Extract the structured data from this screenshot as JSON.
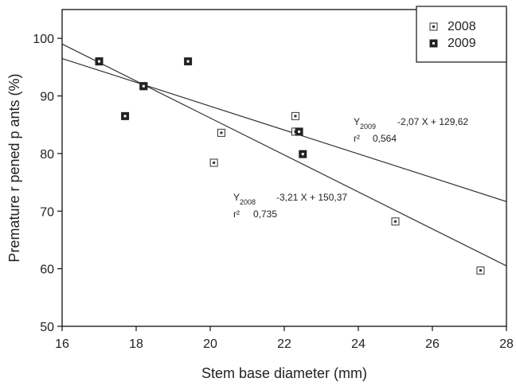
{
  "chart_data": {
    "type": "scatter",
    "xlabel": "Stem base diameter (mm)",
    "ylabel": "Premature r pened p ants (%)",
    "xlim": [
      16,
      28
    ],
    "ylim": [
      50,
      105
    ],
    "x_ticks": [
      "16",
      "18",
      "20",
      "22",
      "24",
      "26",
      "28"
    ],
    "y_ticks": [
      "50",
      "60",
      "70",
      "80",
      "90",
      "100"
    ],
    "x_tick_values": [
      16,
      18,
      20,
      22,
      24,
      26,
      28
    ],
    "y_tick_values": [
      50,
      60,
      70,
      80,
      90,
      100
    ],
    "grid": false,
    "legend_position": "top-right",
    "series": [
      {
        "name": "2008",
        "marker": "open-square",
        "points": [
          [
            17.0,
            96.0
          ],
          [
            18.2,
            91.7
          ],
          [
            20.1,
            78.4
          ],
          [
            20.3,
            83.6
          ],
          [
            22.3,
            86.5
          ],
          [
            22.3,
            83.8
          ],
          [
            25.0,
            68.2
          ],
          [
            27.3,
            59.7
          ]
        ],
        "fit": {
          "slope": -3.21,
          "intercept": 150.37
        }
      },
      {
        "name": "2009",
        "marker": "filled-square",
        "points": [
          [
            17.0,
            96.0
          ],
          [
            17.7,
            86.5
          ],
          [
            18.2,
            91.7
          ],
          [
            19.4,
            96.0
          ],
          [
            22.4,
            83.8
          ],
          [
            22.5,
            79.9
          ]
        ],
        "fit": {
          "slope": -2.07,
          "intercept": 129.62
        }
      }
    ],
    "annotations": [
      {
        "id": "2009",
        "y_label": "Y",
        "y_sub": "2009",
        "equation": "-2,07 X + 129,62",
        "r_label": "r²",
        "r_value": "0,564"
      },
      {
        "id": "2008",
        "y_label": "Y",
        "y_sub": "2008",
        "equation": "-3,21 X + 150,37",
        "r_label": "r²",
        "r_value": "0,735"
      }
    ]
  }
}
